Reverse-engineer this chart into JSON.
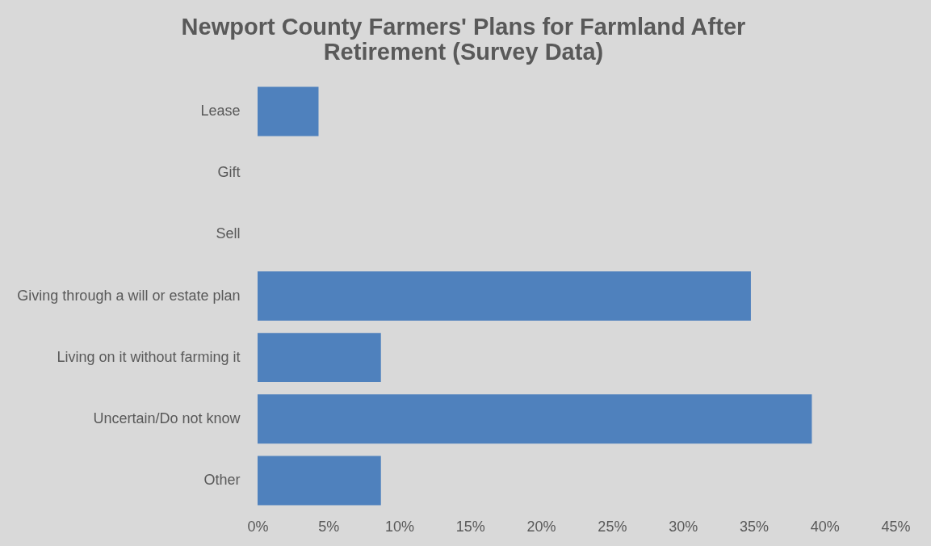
{
  "chart_data": {
    "type": "bar",
    "orientation": "horizontal",
    "title": "Newport County Farmers' Plans for Farmland After Retirement (Survey Data)",
    "categories": [
      "Lease",
      "Gift",
      "Sell",
      "Giving through a will or estate plan",
      "Living on it without farming it",
      "Uncertain/Do not know",
      "Other"
    ],
    "values": [
      4.3,
      0,
      0,
      34.8,
      8.7,
      39.1,
      8.7
    ],
    "color": "#4f81bd",
    "xlim": [
      0,
      45
    ],
    "xticks": [
      {
        "value": 0,
        "label": "0%"
      },
      {
        "value": 5,
        "label": "5%"
      },
      {
        "value": 10,
        "label": "10%"
      },
      {
        "value": 15,
        "label": "15%"
      },
      {
        "value": 20,
        "label": "20%"
      },
      {
        "value": 25,
        "label": "25%"
      },
      {
        "value": 30,
        "label": "30%"
      },
      {
        "value": 35,
        "label": "35%"
      },
      {
        "value": 40,
        "label": "40%"
      },
      {
        "value": 45,
        "label": "45%"
      }
    ]
  }
}
